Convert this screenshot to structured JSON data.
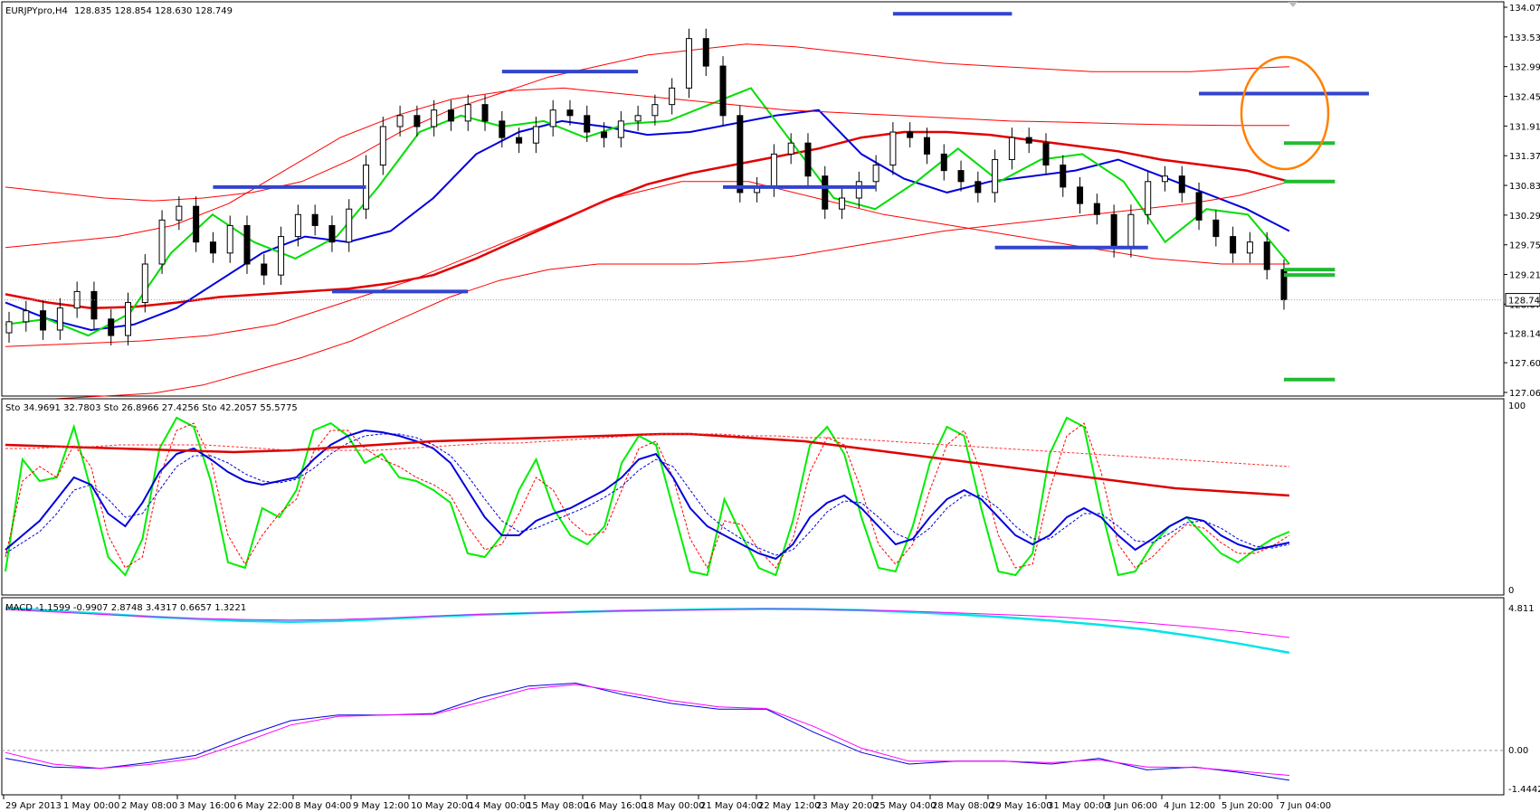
{
  "chart_data": {
    "type": "candlestick",
    "symbol_label": "EURJPYpro,H4",
    "ohlc_label": "128.835 128.854 128.630 128.749",
    "price_axis": {
      "ticks": [
        "134.070",
        "133.530",
        "132.990",
        "132.450",
        "131.910",
        "131.370",
        "130.830",
        "130.290",
        "129.750",
        "129.210",
        "128.670",
        "128.145",
        "127.605",
        "127.065"
      ],
      "range": [
        127.065,
        134.07
      ]
    },
    "last_price": {
      "value": 128.749,
      "label": "128.749"
    },
    "time_axis": [
      "29 Apr 2013",
      "1 May 00:00",
      "2 May 08:00",
      "3 May 16:00",
      "6 May 22:00",
      "8 May 04:00",
      "9 May 12:00",
      "10 May 20:00",
      "14 May 00:00",
      "15 May 08:00",
      "16 May 16:00",
      "18 May 00:00",
      "21 May 04:00",
      "22 May 12:00",
      "23 May 20:00",
      "25 May 04:00",
      "28 May 08:00",
      "29 May 16:00",
      "31 May 00:00",
      "3 Jun 06:00",
      "4 Jun 12:00",
      "5 Jun 20:00",
      "7 Jun 04:00"
    ],
    "candles_close": [
      128.35,
      128.55,
      128.2,
      128.6,
      128.9,
      128.4,
      128.1,
      128.7,
      129.4,
      130.2,
      130.45,
      129.8,
      129.6,
      130.1,
      129.4,
      129.2,
      129.9,
      130.3,
      130.1,
      129.8,
      130.4,
      131.2,
      131.9,
      132.1,
      131.9,
      132.2,
      132.0,
      132.3,
      132.0,
      131.7,
      131.6,
      131.9,
      132.2,
      132.1,
      131.8,
      131.7,
      132.0,
      132.1,
      132.3,
      132.6,
      133.5,
      133.0,
      132.1,
      130.7,
      130.8,
      131.4,
      131.6,
      131.0,
      130.4,
      130.6,
      130.9,
      131.2,
      131.8,
      131.7,
      131.4,
      131.1,
      130.9,
      130.7,
      131.3,
      131.7,
      131.6,
      131.2,
      130.8,
      130.5,
      130.3,
      129.7,
      130.3,
      130.9,
      131.0,
      130.7,
      130.2,
      129.9,
      129.6,
      129.8,
      129.3,
      128.75
    ],
    "panels": [
      {
        "name": "stochastic",
        "label": "Sto 34.9691 32.7803  Sto 26.8966 27.4256  Sto 42.2057 55.5775",
        "ticks": [
          "100",
          "0"
        ],
        "range": [
          0,
          100
        ],
        "series": [
          {
            "color": "#00ee00",
            "values": [
              10,
              72,
              60,
              62,
              90,
              55,
              18,
              8,
              28,
              78,
              95,
              90,
              60,
              15,
              12,
              45,
              40,
              55,
              88,
              92,
              85,
              70,
              75,
              62,
              60,
              55,
              48,
              20,
              18,
              30,
              55,
              72,
              45,
              30,
              25,
              35,
              70,
              85,
              80,
              45,
              10,
              8,
              50,
              30,
              12,
              8,
              38,
              80,
              90,
              75,
              40,
              12,
              10,
              35,
              70,
              90,
              85,
              45,
              10,
              8,
              20,
              75,
              95,
              90,
              45,
              8,
              10,
              25,
              35,
              40,
              30,
              20,
              15,
              22,
              28,
              32
            ]
          },
          {
            "color": "#ff0000",
            "dashed": true,
            "values": [
              18,
              60,
              68,
              62,
              80,
              68,
              30,
              12,
              18,
              62,
              88,
              92,
              72,
              30,
              14,
              30,
              42,
              50,
              76,
              88,
              88,
              78,
              72,
              68,
              62,
              58,
              52,
              35,
              22,
              25,
              42,
              62,
              55,
              38,
              30,
              32,
              55,
              78,
              82,
              62,
              28,
              12,
              38,
              36,
              22,
              12,
              28,
              65,
              84,
              80,
              55,
              25,
              14,
              25,
              55,
              80,
              88,
              65,
              30,
              12,
              14,
              55,
              85,
              92,
              65,
              25,
              12,
              18,
              28,
              36,
              34,
              26,
              20,
              20,
              24,
              30
            ]
          },
          {
            "color": "#0000dd",
            "values": [
              22,
              30,
              38,
              50,
              62,
              58,
              42,
              35,
              48,
              65,
              75,
              78,
              72,
              65,
              60,
              58,
              60,
              62,
              72,
              80,
              85,
              88,
              87,
              85,
              82,
              78,
              70,
              55,
              40,
              30,
              30,
              38,
              42,
              45,
              50,
              55,
              62,
              72,
              75,
              62,
              45,
              35,
              30,
              25,
              20,
              17,
              25,
              40,
              48,
              52,
              45,
              35,
              25,
              28,
              40,
              50,
              55,
              50,
              40,
              30,
              25,
              30,
              40,
              45,
              40,
              30,
              22,
              28,
              35,
              40,
              38,
              30,
              25,
              22,
              24,
              26
            ]
          },
          {
            "color": "#0000dd",
            "dashed": true,
            "values": [
              20,
              26,
              32,
              42,
              55,
              58,
              50,
              40,
              42,
              55,
              68,
              74,
              74,
              70,
              64,
              60,
              59,
              61,
              67,
              75,
              81,
              85,
              86,
              86,
              84,
              80,
              74,
              63,
              50,
              38,
              32,
              34,
              38,
              42,
              46,
              51,
              57,
              66,
              72,
              68,
              55,
              42,
              34,
              28,
              23,
              19,
              22,
              32,
              43,
              49,
              48,
              40,
              31,
              27,
              34,
              45,
              52,
              52,
              45,
              35,
              28,
              28,
              35,
              42,
              42,
              35,
              27,
              26,
              31,
              37,
              38,
              34,
              28,
              24,
              23,
              25
            ]
          },
          {
            "color": "#dd0000",
            "width": 2.5,
            "values": [
              80,
              79.5,
              79,
              78.5,
              78,
              77.5,
              77,
              76.5,
              76,
              76.5,
              77,
              78,
              79,
              80,
              81,
              82,
              82.5,
              83,
              83.5,
              84,
              84.5,
              85,
              85.5,
              86,
              86,
              85,
              84,
              83,
              82,
              80,
              78,
              76,
              74,
              72,
              70,
              68,
              66,
              64,
              62,
              60,
              58,
              56,
              55,
              54,
              53,
              52
            ]
          },
          {
            "color": "#ff3333",
            "dashed": true,
            "values": [
              78,
              78,
              79,
              79,
              80,
              80,
              80,
              80,
              79,
              78,
              77,
              77,
              77,
              77,
              78,
              79,
              80,
              81,
              81,
              82,
              83,
              84,
              85,
              86,
              86,
              86,
              85,
              85,
              84,
              84,
              83,
              82,
              81,
              80,
              79,
              78,
              77,
              76,
              75,
              74,
              73,
              72,
              71,
              70,
              69,
              68
            ]
          }
        ]
      },
      {
        "name": "macd",
        "label": "MACD -1.1599 -0.9907 2.8748 3.4317 0.6657 1.3221",
        "ticks": [
          "4.811",
          "0.00",
          "-1.4442"
        ],
        "range": [
          -1.4442,
          4.811
        ],
        "series": [
          {
            "color": "#00e5e5",
            "width": 2.5,
            "values": [
              4.811,
              4.7,
              4.6,
              4.5,
              4.42,
              4.35,
              4.32,
              4.35,
              4.42,
              4.5,
              4.57,
              4.62,
              4.66,
              4.7,
              4.73,
              4.76,
              4.77,
              4.76,
              4.72,
              4.66,
              4.58,
              4.48,
              4.36,
              4.22,
              4.05,
              3.82,
              3.55,
              3.25
            ]
          },
          {
            "color": "#ff00ff",
            "values": [
              4.75,
              4.66,
              4.58,
              4.5,
              4.44,
              4.4,
              4.38,
              4.4,
              4.45,
              4.52,
              4.58,
              4.62,
              4.66,
              4.7,
              4.72,
              4.74,
              4.76,
              4.75,
              4.73,
              4.69,
              4.63,
              4.57,
              4.5,
              4.4,
              4.28,
              4.14,
              3.98,
              3.78
            ]
          },
          {
            "color": "#0000dd",
            "values": [
              -0.4,
              -0.7,
              -0.75,
              -0.55,
              -0.3,
              0.35,
              0.9,
              1.1,
              1.1,
              1.15,
              1.7,
              2.1,
              2.2,
              1.8,
              1.5,
              1.3,
              1.3,
              0.5,
              -0.2,
              -0.6,
              -0.5,
              -0.5,
              -0.6,
              -0.4,
              -0.8,
              -0.7,
              -0.9,
              -1.1599
            ]
          },
          {
            "color": "#ff00ff",
            "values": [
              -0.2,
              -0.6,
              -0.75,
              -0.62,
              -0.4,
              0.15,
              0.75,
              1.05,
              1.1,
              1.12,
              1.55,
              2.0,
              2.15,
              1.9,
              1.6,
              1.38,
              1.32,
              0.7,
              -0.05,
              -0.5,
              -0.5,
              -0.5,
              -0.55,
              -0.45,
              -0.7,
              -0.72,
              -0.85,
              -0.9907
            ]
          }
        ]
      }
    ],
    "main_lines": [
      {
        "color": "#e00000",
        "width": 2.5,
        "values": [
          128.85,
          128.7,
          128.6,
          128.62,
          128.7,
          128.8,
          128.85,
          128.9,
          128.95,
          129.05,
          129.2,
          129.5,
          129.85,
          130.2,
          130.55,
          130.85,
          131.05,
          131.2,
          131.35,
          131.5,
          131.7,
          131.8,
          131.8,
          131.75,
          131.65,
          131.55,
          131.45,
          131.3,
          131.2,
          131.1,
          130.9
        ]
      },
      {
        "color": "#0000dd",
        "width": 2,
        "values": [
          128.7,
          128.4,
          128.2,
          128.3,
          128.6,
          129.1,
          129.6,
          129.9,
          129.8,
          130.0,
          130.6,
          131.4,
          131.8,
          132.0,
          131.9,
          131.75,
          131.8,
          131.95,
          132.1,
          132.2,
          131.4,
          130.95,
          130.7,
          130.9,
          131.0,
          131.1,
          131.3,
          131.0,
          130.7,
          130.4,
          130.0
        ]
      },
      {
        "color": "#00dd00",
        "width": 2,
        "values": [
          128.3,
          128.4,
          128.1,
          128.5,
          129.6,
          130.3,
          129.8,
          129.5,
          129.9,
          130.8,
          131.8,
          132.1,
          131.9,
          132.0,
          131.7,
          131.95,
          132.0,
          132.3,
          132.6,
          131.6,
          130.6,
          130.4,
          130.9,
          131.5,
          130.9,
          131.3,
          131.4,
          130.9,
          129.8,
          130.4,
          130.3,
          129.4
        ]
      },
      {
        "color": "#ff0000",
        "values": [
          130.8,
          130.7,
          130.6,
          130.55,
          130.6,
          130.7,
          130.9,
          131.3,
          131.8,
          132.2,
          132.5,
          132.8,
          133.0,
          133.2,
          133.3,
          133.4,
          133.35,
          133.25,
          133.15,
          133.05,
          133.0,
          132.95,
          132.9,
          132.9,
          132.9,
          132.95,
          132.99
        ]
      },
      {
        "color": "#ff0000",
        "values": [
          126.9,
          126.95,
          127.0,
          127.05,
          127.2,
          127.45,
          127.7,
          128.0,
          128.4,
          128.8,
          129.1,
          129.3,
          129.4,
          129.4,
          129.4,
          129.45,
          129.55,
          129.7,
          129.85,
          130.0,
          130.1,
          130.2,
          130.3,
          130.4,
          130.5,
          130.65,
          130.9
        ]
      },
      {
        "color": "#ff0000",
        "values": [
          129.7,
          129.8,
          129.9,
          130.1,
          130.5,
          131.1,
          131.7,
          132.1,
          132.4,
          132.55,
          132.6,
          132.5,
          132.4,
          132.3,
          132.2,
          132.15,
          132.1,
          132.05,
          132.0,
          131.98,
          131.95,
          131.93,
          131.92,
          131.92
        ]
      },
      {
        "color": "#ff0000",
        "values": [
          127.9,
          127.95,
          128.0,
          128.1,
          128.3,
          128.7,
          129.1,
          129.6,
          130.1,
          130.6,
          130.9,
          130.9,
          130.6,
          130.3,
          130.1,
          129.9,
          129.7,
          129.5,
          129.4,
          129.4
        ]
      }
    ],
    "annotations": {
      "blue_levels": [
        {
          "price": 130.8,
          "from": 12,
          "to": 21
        },
        {
          "price": 128.9,
          "from": 19,
          "to": 27
        },
        {
          "price": 132.9,
          "from": 29,
          "to": 37
        },
        {
          "price": 130.8,
          "from": 42,
          "to": 51
        },
        {
          "price": 133.95,
          "from": 52,
          "to": 59
        },
        {
          "price": 129.7,
          "from": 58,
          "to": 67
        },
        {
          "price": 132.5,
          "from": 70,
          "to": 80
        }
      ],
      "green_levels": [
        {
          "price": 129.3,
          "from": 77,
          "to": 81
        },
        {
          "price": 131.6,
          "from": 81,
          "to": 85
        },
        {
          "price": 129.2,
          "from": 85,
          "to": 88
        },
        {
          "price": 130.9,
          "from": 87,
          "to": 91
        },
        {
          "price": 127.3,
          "from": 88,
          "to": 93
        }
      ]
    }
  }
}
